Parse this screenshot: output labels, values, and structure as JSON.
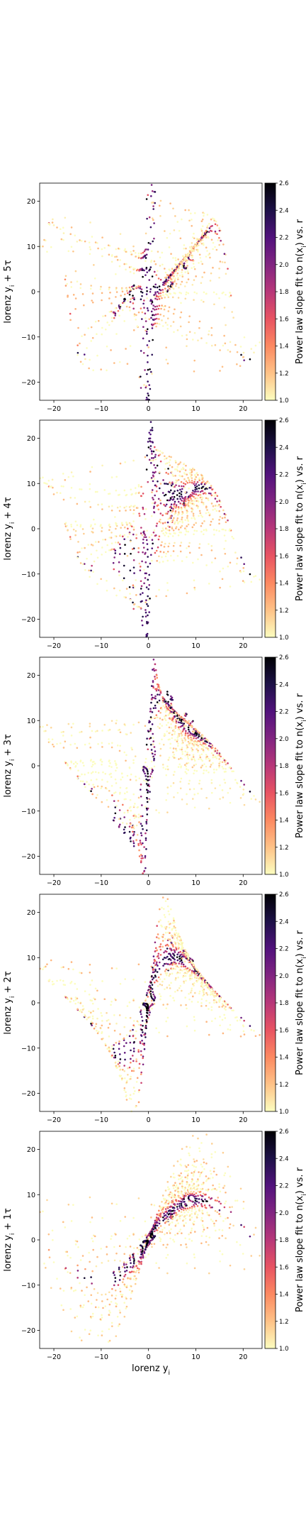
{
  "colorbar": {
    "label": "Power law slope fit to n(x_i) vs. r",
    "range": [
      1.0,
      2.6
    ],
    "ticks": [
      "1.0",
      "1.2",
      "1.4",
      "1.6",
      "1.8",
      "2.0",
      "2.2",
      "2.4",
      "2.6"
    ],
    "colormap": "magma_r",
    "stops": [
      "#fcfdbf",
      "#fec287",
      "#fc8961",
      "#e85362",
      "#b73779",
      "#812581",
      "#51127c",
      "#1d1147",
      "#000004"
    ]
  },
  "chart_data": [
    {
      "type": "scatter",
      "xlabel": "",
      "ylabel": "lorenz y_i + 5τ",
      "xlim": [
        -23,
        24
      ],
      "ylim": [
        -24,
        24
      ],
      "xticks": [
        "−20",
        "−10",
        "0",
        "10",
        "20"
      ],
      "yticks": [
        "−20",
        "−10",
        "0",
        "10",
        "20"
      ]
    },
    {
      "type": "scatter",
      "xlabel": "",
      "ylabel": "lorenz y_i + 4τ",
      "xlim": [
        -23,
        24
      ],
      "ylim": [
        -24,
        24
      ],
      "xticks": [
        "−20",
        "−10",
        "0",
        "10",
        "20"
      ],
      "yticks": [
        "−20",
        "−10",
        "0",
        "10",
        "20"
      ]
    },
    {
      "type": "scatter",
      "xlabel": "",
      "ylabel": "lorenz y_i + 3τ",
      "xlim": [
        -23,
        24
      ],
      "ylim": [
        -24,
        24
      ],
      "xticks": [
        "−20",
        "−10",
        "0",
        "10",
        "20"
      ],
      "yticks": [
        "−20",
        "−10",
        "0",
        "10",
        "20"
      ]
    },
    {
      "type": "scatter",
      "xlabel": "",
      "ylabel": "lorenz y_i + 2τ",
      "xlim": [
        -23,
        24
      ],
      "ylim": [
        -24,
        24
      ],
      "xticks": [
        "−20",
        "−10",
        "0",
        "10",
        "20"
      ],
      "yticks": [
        "−20",
        "−10",
        "0",
        "10",
        "20"
      ]
    },
    {
      "type": "scatter",
      "xlabel": "lorenz y_i",
      "ylabel": "lorenz y_i + 1τ",
      "xlim": [
        -23,
        24
      ],
      "ylim": [
        -24,
        24
      ],
      "xticks": [
        "−20",
        "−10",
        "0",
        "10",
        "20"
      ],
      "yticks": [
        "−20",
        "−10",
        "0",
        "10",
        "20"
      ]
    }
  ]
}
